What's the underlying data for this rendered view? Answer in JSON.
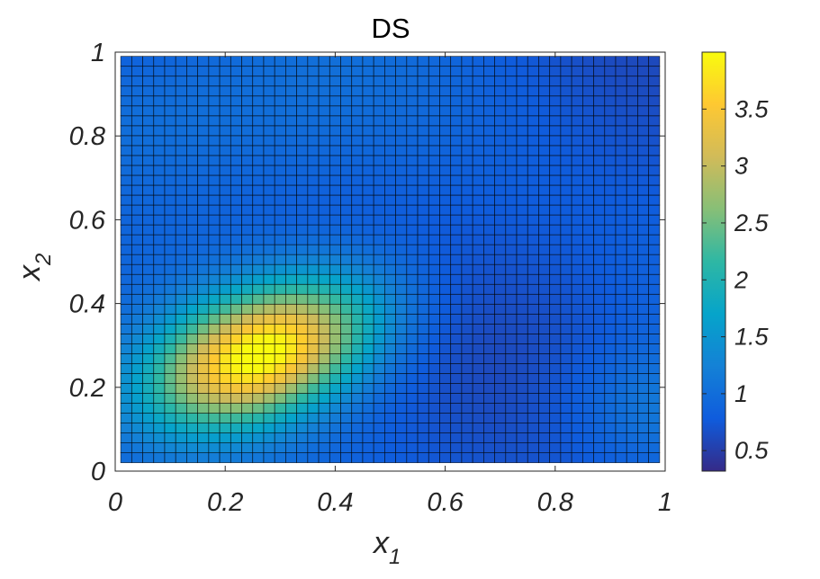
{
  "chart_data": {
    "type": "heatmap",
    "title": "DS",
    "xlabel": {
      "base": "x",
      "sub": "1"
    },
    "ylabel": {
      "base": "x",
      "sub": "2"
    },
    "xlim": [
      0,
      1
    ],
    "ylim": [
      0,
      1
    ],
    "xticks": [
      0,
      0.2,
      0.4,
      0.6,
      0.8,
      1
    ],
    "xtick_labels": [
      "0",
      "0.2",
      "0.4",
      "0.6",
      "0.8",
      "1"
    ],
    "yticks": [
      0,
      0.2,
      0.4,
      0.6,
      0.8,
      1
    ],
    "ytick_labels": [
      "0",
      "0.2",
      "0.4",
      "0.6",
      "0.8",
      "1"
    ],
    "colorbar": {
      "range": [
        0.32,
        4.0
      ],
      "ticks": [
        0.5,
        1,
        1.5,
        2,
        2.5,
        3,
        3.5
      ],
      "tick_labels": [
        "0.5",
        "1",
        "1.5",
        "2",
        "2.5",
        "3",
        "3.5"
      ],
      "colormap": "parula",
      "colors": [
        "#352a87",
        "#0f5cdd",
        "#1481d6",
        "#06a4ca",
        "#2eb7a4",
        "#87bf77",
        "#d1bb59",
        "#fec832",
        "#f9fb0e"
      ]
    },
    "grid_cells": {
      "nx": 49,
      "ny": 41
    },
    "data_extent": {
      "x": [
        0.01,
        0.99
      ],
      "y": [
        0.02,
        0.99
      ]
    },
    "cell_edge_color": "#000000",
    "surface": [
      {
        "field": "peak",
        "x": 0.265,
        "y": 0.28,
        "amplitude": 3.2,
        "sigma_major": 0.15,
        "sigma_minor": 0.095,
        "angle_deg": 35
      },
      {
        "field": "ridge",
        "x": 0.0,
        "y": 0.85,
        "amplitude": 0.35,
        "sigma_major": 0.25,
        "sigma_minor": 0.15,
        "angle_deg": 0
      },
      {
        "field": "ridge",
        "x": 0.99,
        "y": 0.15,
        "amplitude": 0.35,
        "sigma_major": 0.12,
        "sigma_minor": 0.1,
        "angle_deg": 0
      },
      {
        "field": "base",
        "value": 0.78
      }
    ]
  }
}
